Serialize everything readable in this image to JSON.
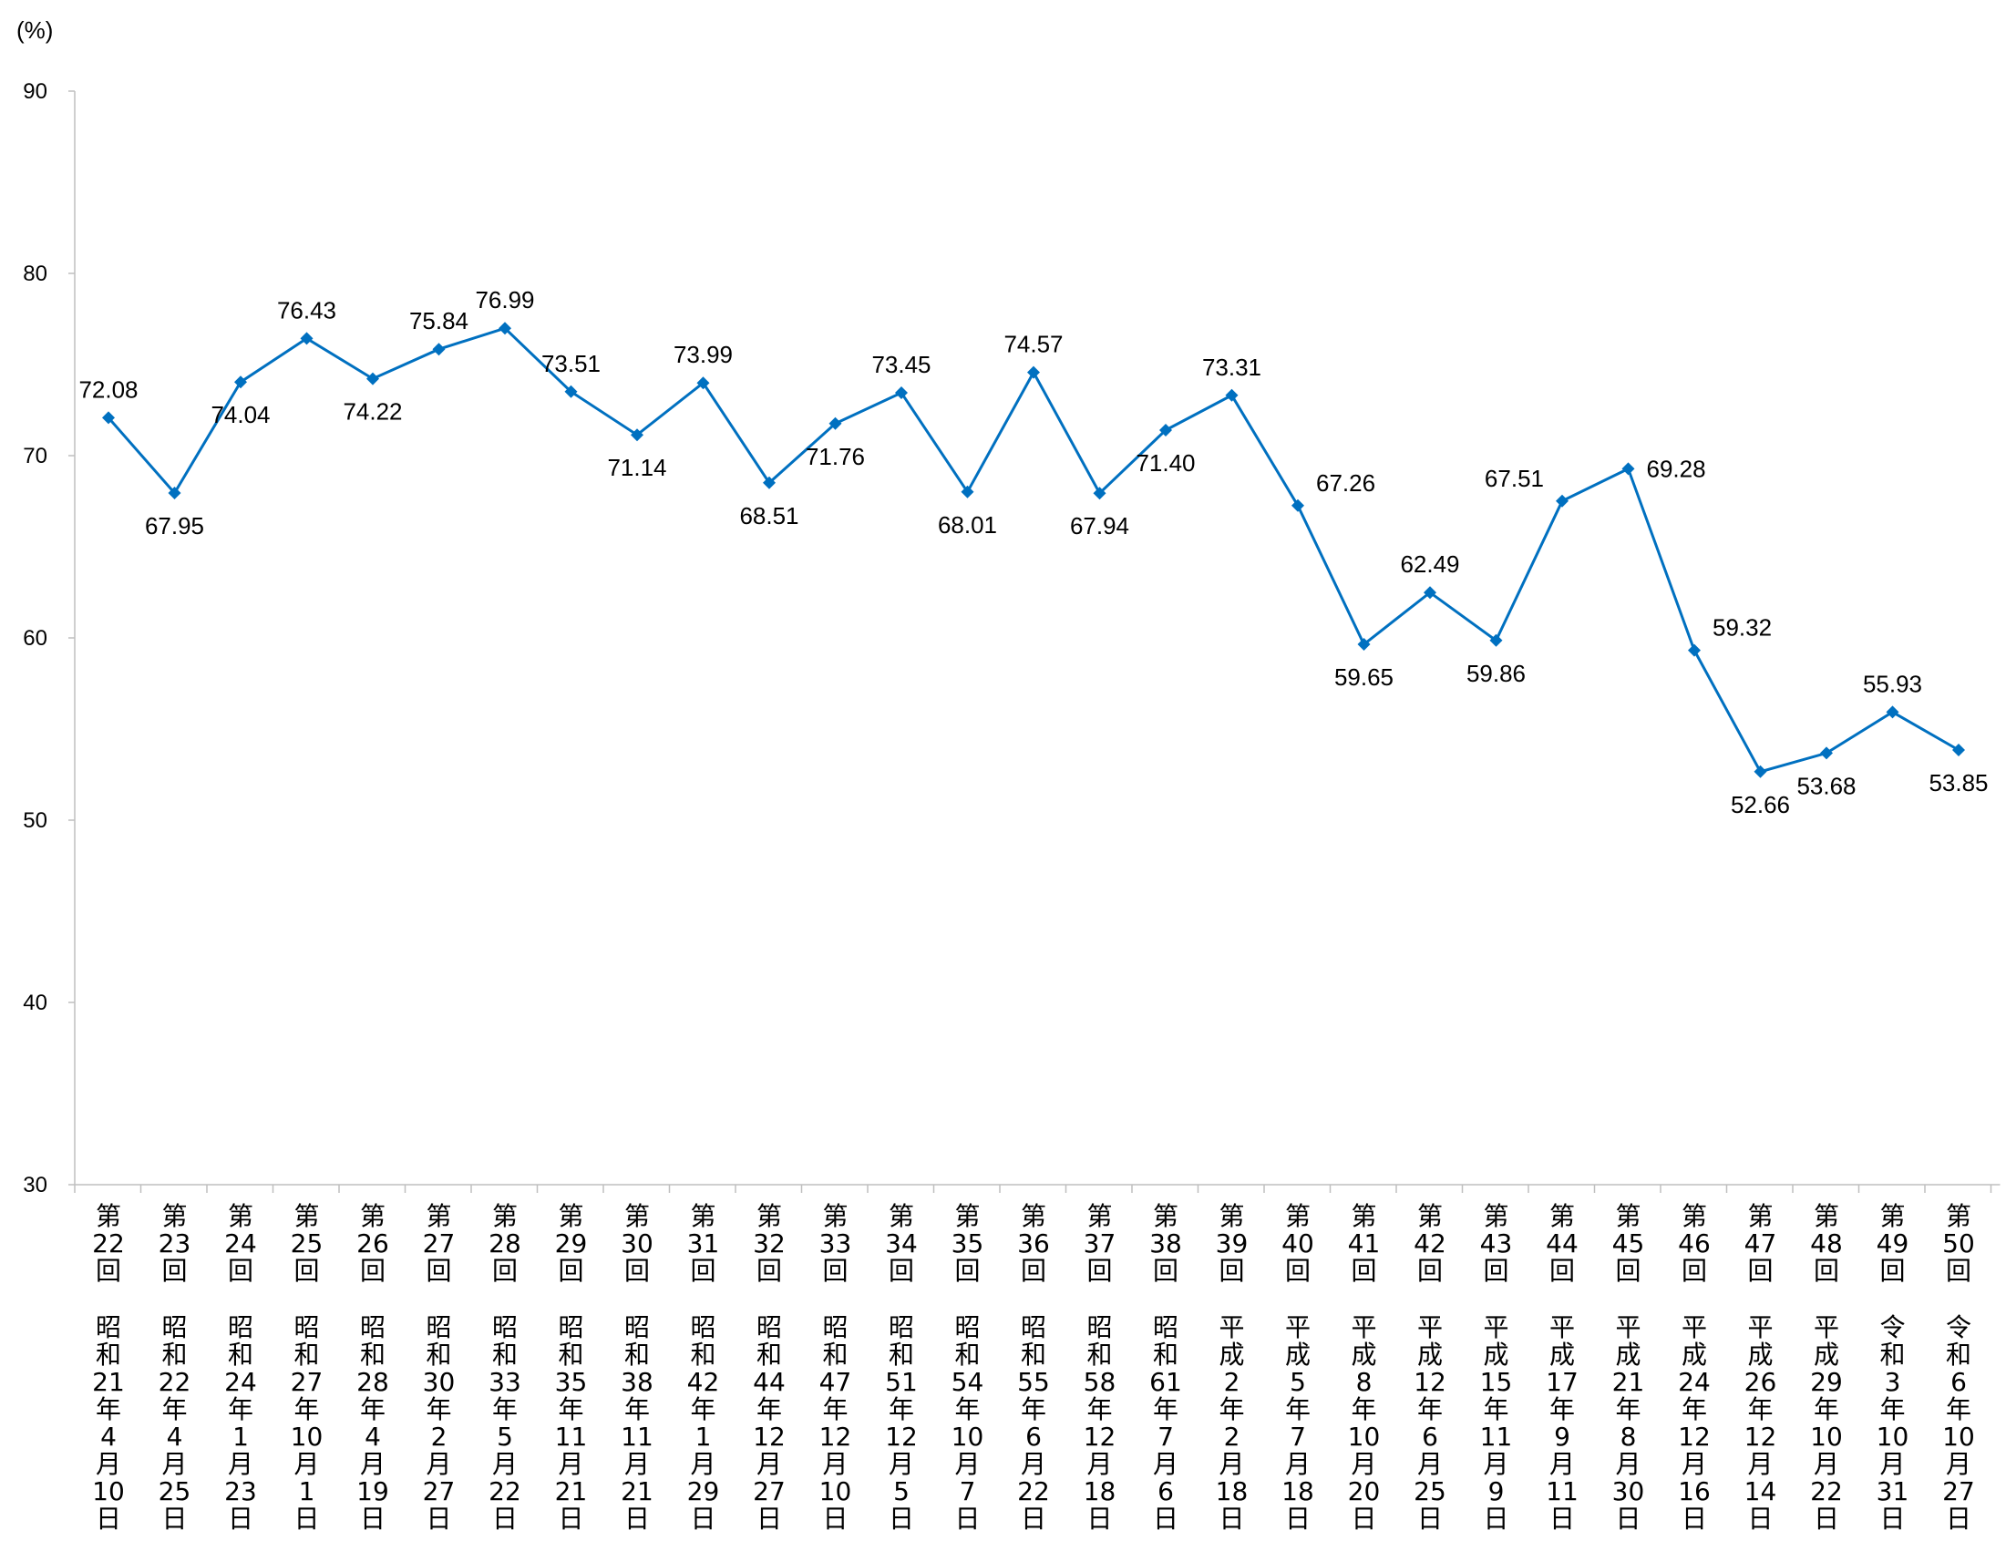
{
  "chart_data": {
    "type": "line",
    "title": "",
    "xlabel": "",
    "ylabel": "",
    "y_unit": "(%)",
    "ylim": [
      30,
      90
    ],
    "yticks": [
      30,
      40,
      50,
      60,
      70,
      80,
      90
    ],
    "grid": false,
    "legend": "none",
    "line_color": "#0070c0",
    "marker": "diamond",
    "categories": [
      {
        "election": "第22回",
        "date": "昭和21年4月10日"
      },
      {
        "election": "第23回",
        "date": "昭和22年4月25日"
      },
      {
        "election": "第24回",
        "date": "昭和24年1月23日"
      },
      {
        "election": "第25回",
        "date": "昭和27年10月1日"
      },
      {
        "election": "第26回",
        "date": "昭和28年4月19日"
      },
      {
        "election": "第27回",
        "date": "昭和30年2月27日"
      },
      {
        "election": "第28回",
        "date": "昭和33年5月22日"
      },
      {
        "election": "第29回",
        "date": "昭和35年11月21日"
      },
      {
        "election": "第30回",
        "date": "昭和38年11月21日"
      },
      {
        "election": "第31回",
        "date": "昭和42年1月29日"
      },
      {
        "election": "第32回",
        "date": "昭和44年12月27日"
      },
      {
        "election": "第33回",
        "date": "昭和47年12月10日"
      },
      {
        "election": "第34回",
        "date": "昭和51年12月5日"
      },
      {
        "election": "第35回",
        "date": "昭和54年10月7日"
      },
      {
        "election": "第36回",
        "date": "昭和55年6月22日"
      },
      {
        "election": "第37回",
        "date": "昭和58年12月18日"
      },
      {
        "election": "第38回",
        "date": "昭和61年7月6日"
      },
      {
        "election": "第39回",
        "date": "平成2年2月18日"
      },
      {
        "election": "第40回",
        "date": "平成5年7月18日"
      },
      {
        "election": "第41回",
        "date": "平成8年10月20日"
      },
      {
        "election": "第42回",
        "date": "平成12年6月25日"
      },
      {
        "election": "第43回",
        "date": "平成15年11月9日"
      },
      {
        "election": "第44回",
        "date": "平成17年9月11日"
      },
      {
        "election": "第45回",
        "date": "平成21年8月30日"
      },
      {
        "election": "第46回",
        "date": "平成24年12月16日"
      },
      {
        "election": "第47回",
        "date": "平成26年12月14日"
      },
      {
        "election": "第48回",
        "date": "平成29年10月22日"
      },
      {
        "election": "第49回",
        "date": "令和3年10月31日"
      },
      {
        "election": "第50回",
        "date": "令和6年10月27日"
      }
    ],
    "values": [
      72.08,
      67.95,
      74.04,
      76.43,
      74.22,
      75.84,
      76.99,
      73.51,
      71.14,
      73.99,
      68.51,
      71.76,
      73.45,
      68.01,
      74.57,
      67.94,
      71.4,
      73.31,
      67.26,
      59.65,
      62.49,
      59.86,
      67.51,
      69.28,
      59.32,
      52.66,
      53.68,
      55.93,
      53.85
    ],
    "value_labels": [
      "72.08",
      "67.95",
      "74.04",
      "76.43",
      "74.22",
      "75.84",
      "76.99",
      "73.51",
      "71.14",
      "73.99",
      "68.51",
      "71.76",
      "73.45",
      "68.01",
      "74.57",
      "67.94",
      "71.40",
      "73.31",
      "67.26",
      "59.65",
      "62.49",
      "59.86",
      "67.51",
      "69.28",
      "59.32",
      "52.66",
      "53.68",
      "55.93",
      "53.85"
    ],
    "label_positions": [
      "above",
      "below",
      "below",
      "above",
      "below",
      "above",
      "above",
      "above",
      "below",
      "above",
      "below",
      "below",
      "above",
      "below",
      "above",
      "below",
      "below",
      "above",
      "above-right",
      "below",
      "above",
      "below",
      "above-left",
      "right",
      "above-right",
      "below",
      "below",
      "above",
      "below"
    ]
  }
}
